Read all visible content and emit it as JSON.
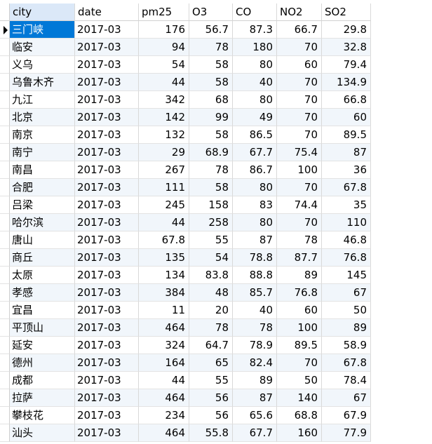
{
  "columns": [
    "city",
    "date",
    "pm25",
    "O3",
    "CO",
    "NO2",
    "SO2"
  ],
  "rows": [
    [
      "三门峡",
      "2017-03",
      "176",
      "56.7",
      "87.3",
      "66.7",
      "29.8"
    ],
    [
      "临安",
      "2017-03",
      "94",
      "78",
      "180",
      "70",
      "32.8"
    ],
    [
      "义乌",
      "2017-03",
      "54",
      "58",
      "80",
      "60",
      "79.4"
    ],
    [
      "乌鲁木齐",
      "2017-03",
      "44",
      "58",
      "40",
      "70",
      "134.9"
    ],
    [
      "九江",
      "2017-03",
      "342",
      "68",
      "80",
      "70",
      "66.8"
    ],
    [
      "北京",
      "2017-03",
      "142",
      "99",
      "49",
      "70",
      "60"
    ],
    [
      "南京",
      "2017-03",
      "132",
      "58",
      "86.5",
      "70",
      "89.5"
    ],
    [
      "南宁",
      "2017-03",
      "29",
      "68.9",
      "67.7",
      "75.4",
      "87"
    ],
    [
      "南昌",
      "2017-03",
      "267",
      "78",
      "86.7",
      "100",
      "36"
    ],
    [
      "合肥",
      "2017-03",
      "111",
      "58",
      "80",
      "70",
      "67.8"
    ],
    [
      "吕梁",
      "2017-03",
      "245",
      "158",
      "83",
      "74.4",
      "35"
    ],
    [
      "哈尔滨",
      "2017-03",
      "44",
      "258",
      "80",
      "70",
      "110"
    ],
    [
      "唐山",
      "2017-03",
      "67.8",
      "55",
      "87",
      "78",
      "46.8"
    ],
    [
      "商丘",
      "2017-03",
      "135",
      "54",
      "78.8",
      "87.7",
      "76.8"
    ],
    [
      "太原",
      "2017-03",
      "134",
      "83.8",
      "88.8",
      "89",
      "145"
    ],
    [
      "孝感",
      "2017-03",
      "384",
      "48",
      "85.7",
      "76.8",
      "67"
    ],
    [
      "宜昌",
      "2017-03",
      "11",
      "20",
      "40",
      "60",
      "50"
    ],
    [
      "平顶山",
      "2017-03",
      "464",
      "78",
      "78",
      "100",
      "89"
    ],
    [
      "延安",
      "2017-03",
      "324",
      "64.7",
      "78.9",
      "89.5",
      "58.9"
    ],
    [
      "德州",
      "2017-03",
      "164",
      "65",
      "82.4",
      "70",
      "67.8"
    ],
    [
      "成都",
      "2017-03",
      "44",
      "55",
      "89",
      "50",
      "78.4"
    ],
    [
      "拉萨",
      "2017-03",
      "464",
      "56",
      "87",
      "140",
      "67"
    ],
    [
      "攀枝花",
      "2017-03",
      "234",
      "56",
      "65.6",
      "68.8",
      "67.9"
    ],
    [
      "汕头",
      "2017-03",
      "464",
      "55.8",
      "67.7",
      "160",
      "77.9"
    ]
  ],
  "selected_row": 0,
  "colors": {
    "selection": "#0078d7",
    "header_active": "#dbe8f8",
    "row_alt": "#f1f6fb"
  }
}
